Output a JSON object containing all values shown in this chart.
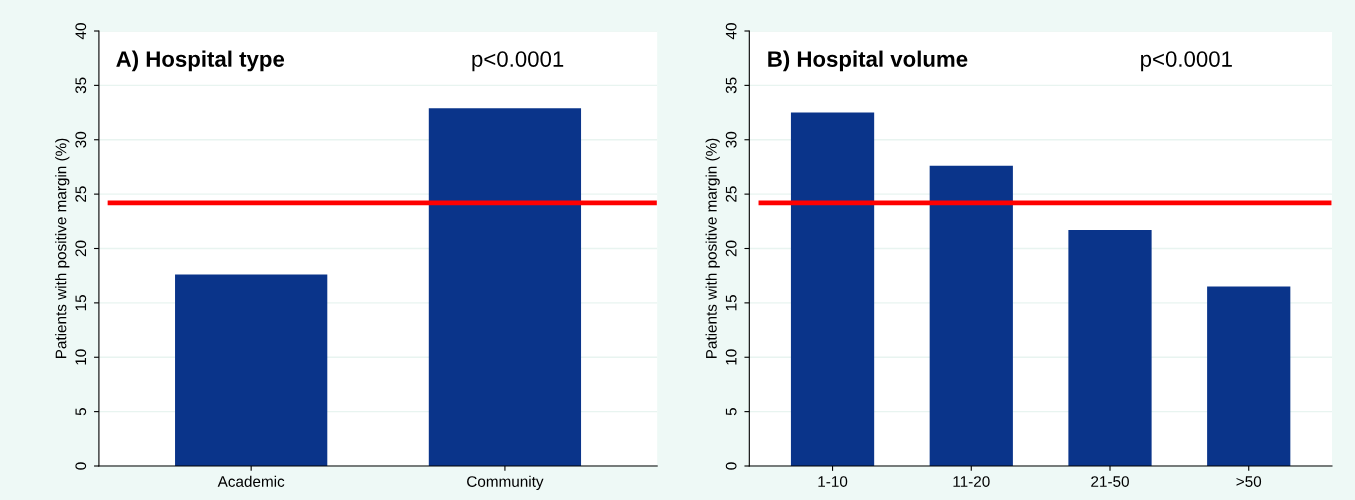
{
  "chart_data": [
    {
      "type": "bar",
      "title": "A) Hospital type",
      "ylabel": "Patients with positive margin (%)",
      "categories": [
        "Academic",
        "Community"
      ],
      "values": [
        17.6,
        32.9
      ],
      "color": "#0a348a",
      "ylim": [
        0,
        40
      ],
      "yticks": [
        0,
        5,
        10,
        15,
        20,
        25,
        30,
        35,
        40
      ],
      "grid": "y",
      "ref_lines": [
        {
          "axis": "y",
          "value": 24.2,
          "color": "#ff0000"
        }
      ],
      "annotations": [
        "p<0.0001"
      ]
    },
    {
      "type": "bar",
      "title": "B) Hospital volume",
      "ylabel": "Patients with positive margin (%)",
      "categories": [
        "1-10",
        "11-20",
        "21-50",
        ">50"
      ],
      "values": [
        32.5,
        27.6,
        21.7,
        16.5
      ],
      "color": "#0a348a",
      "ylim": [
        0,
        40
      ],
      "yticks": [
        0,
        5,
        10,
        15,
        20,
        25,
        30,
        35,
        40
      ],
      "grid": "y",
      "ref_lines": [
        {
          "axis": "y",
          "value": 24.2,
          "color": "#ff0000"
        }
      ],
      "annotations": [
        "p<0.0001"
      ]
    }
  ]
}
